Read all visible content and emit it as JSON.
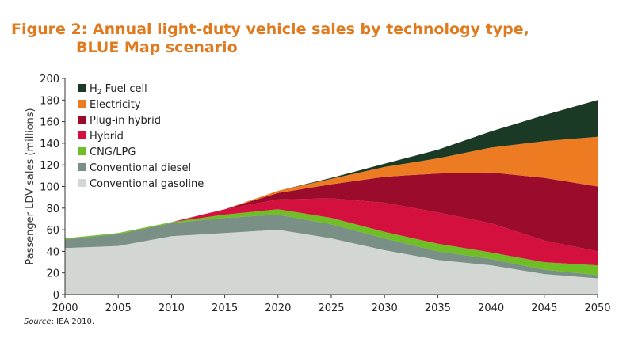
{
  "figure": {
    "title_line1": "Figure 2: Annual light-duty vehicle sales by technology type,",
    "title_line2": "BLUE Map scenario",
    "source_label": "Source",
    "source_text": ": IEA 2010."
  },
  "chart_data": {
    "type": "area",
    "stacked": true,
    "title": "Figure 2: Annual light-duty vehicle sales by technology type, BLUE Map scenario",
    "xlabel": "",
    "ylabel": "Passenger LDV sales (millions)",
    "x": [
      2000,
      2005,
      2010,
      2015,
      2020,
      2025,
      2030,
      2035,
      2040,
      2045,
      2050
    ],
    "xlim": [
      2000,
      2050
    ],
    "ylim": [
      0,
      200
    ],
    "yticks": [
      0,
      20,
      40,
      60,
      80,
      100,
      120,
      140,
      160,
      180,
      200
    ],
    "grid": false,
    "legend_position": "top-left",
    "series": [
      {
        "name": "Conventional gasoline",
        "color": "#d2d7d4",
        "values": [
          43,
          45,
          54,
          57,
          60,
          52,
          41,
          32,
          27,
          19,
          15
        ]
      },
      {
        "name": "Conventional diesel",
        "color": "#7a8f86",
        "values": [
          8,
          11,
          12,
          14,
          14,
          13,
          11,
          8,
          6,
          4,
          3
        ]
      },
      {
        "name": "CNG/LPG",
        "color": "#6fbe25",
        "values": [
          1,
          1,
          1,
          3,
          5,
          6,
          6,
          7,
          6,
          7,
          9
        ]
      },
      {
        "name": "Hybrid",
        "color": "#d3103e",
        "values": [
          0,
          0,
          0,
          5,
          9,
          18,
          27,
          29,
          27,
          20,
          13
        ]
      },
      {
        "name": "Plug-in hybrid",
        "color": "#9b0b2b",
        "values": [
          0,
          0,
          0,
          0,
          6,
          13,
          24,
          36,
          47,
          58,
          60
        ]
      },
      {
        "name": "Electricity",
        "color": "#ec7b22",
        "values": [
          0,
          0,
          0,
          0,
          2,
          5,
          9,
          14,
          23,
          34,
          46
        ]
      },
      {
        "name": "Fuel cell",
        "name_prefix": "H",
        "name_subscript": "2",
        "color": "#1b3a26",
        "values": [
          0,
          0,
          0,
          0,
          0,
          1,
          3,
          8,
          15,
          24,
          34
        ]
      }
    ],
    "legend_order": [
      "Fuel cell",
      "Electricity",
      "Plug-in hybrid",
      "Hybrid",
      "CNG/LPG",
      "Conventional diesel",
      "Conventional gasoline"
    ]
  }
}
